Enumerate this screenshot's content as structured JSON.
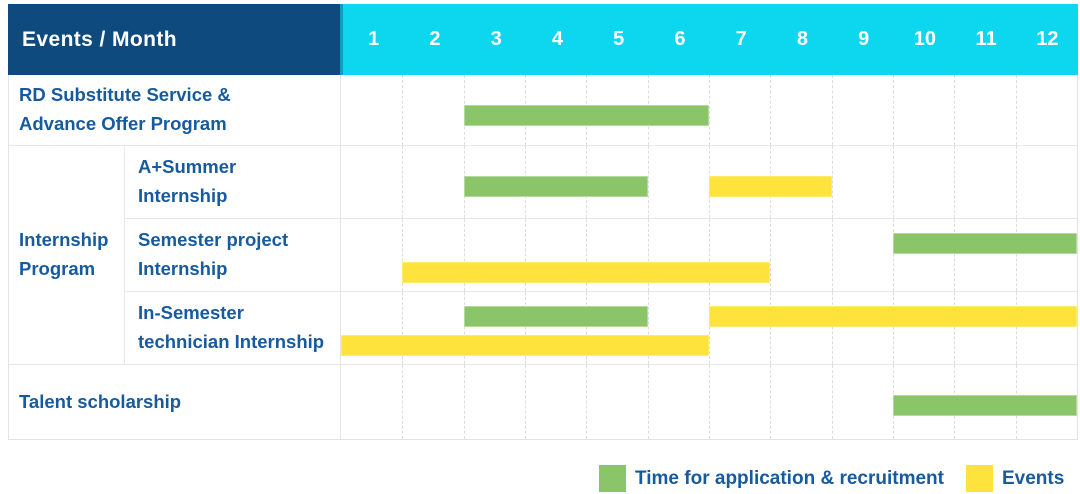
{
  "header": {
    "title": "Events / Month",
    "months": [
      "1",
      "2",
      "3",
      "4",
      "5",
      "6",
      "7",
      "8",
      "9",
      "10",
      "11",
      "12"
    ]
  },
  "legend": [
    {
      "series": "application",
      "label": "Time for application & recruitment"
    },
    {
      "series": "event",
      "label": "Events"
    }
  ],
  "colors": {
    "header_bg": "#0F4A7F",
    "months_bg": "#0CD7EE",
    "label_text": "#175A9D",
    "application_green": "#8BC56A",
    "event_yellow": "#FFE33D"
  },
  "chart_data": {
    "type": "gantt",
    "unit": "month",
    "x_range": [
      1,
      12
    ],
    "x_ticks": [
      "1",
      "2",
      "3",
      "4",
      "5",
      "6",
      "7",
      "8",
      "9",
      "10",
      "11",
      "12"
    ],
    "series": [
      {
        "name": "Time for application & recruitment",
        "key": "application",
        "color": "#8BC56A"
      },
      {
        "name": "Events",
        "key": "event",
        "color": "#FFE33D"
      }
    ],
    "group_label_lines": [
      "Internship",
      "Program"
    ],
    "rows": [
      {
        "label": "RD Substitute Service & Advance Offer Program",
        "label_lines": [
          "RD Substitute Service &",
          "Advance Offer Program"
        ],
        "group": null,
        "bars": [
          {
            "series": "application",
            "start": 3,
            "end": 6,
            "line": "single"
          }
        ]
      },
      {
        "label": "A+Summer Internship",
        "label_lines": [
          "A+Summer",
          "Internship"
        ],
        "group": "Internship Program",
        "bars": [
          {
            "series": "application",
            "start": 3,
            "end": 5,
            "line": "single"
          },
          {
            "series": "event",
            "start": 7,
            "end": 8,
            "line": "single"
          }
        ]
      },
      {
        "label": "Semester project Internship",
        "label_lines": [
          "Semester project",
          "Internship"
        ],
        "group": "Internship Program",
        "bars": [
          {
            "series": "application",
            "start": 10,
            "end": 12,
            "line": "upper"
          },
          {
            "series": "event",
            "start": 2,
            "end": 7,
            "line": "lower"
          }
        ]
      },
      {
        "label": "In-Semester technician Internship",
        "label_lines": [
          "In-Semester",
          "technician Internship"
        ],
        "group": "Internship Program",
        "bars": [
          {
            "series": "application",
            "start": 3,
            "end": 5,
            "line": "upper"
          },
          {
            "series": "event",
            "start": 7,
            "end": 12,
            "line": "upper"
          },
          {
            "series": "event",
            "start": 1,
            "end": 6,
            "line": "lower"
          }
        ]
      },
      {
        "label": "Talent scholarship",
        "label_lines": [
          "Talent scholarship"
        ],
        "group": null,
        "bars": [
          {
            "series": "application",
            "start": 10,
            "end": 12,
            "line": "single"
          }
        ]
      }
    ]
  }
}
